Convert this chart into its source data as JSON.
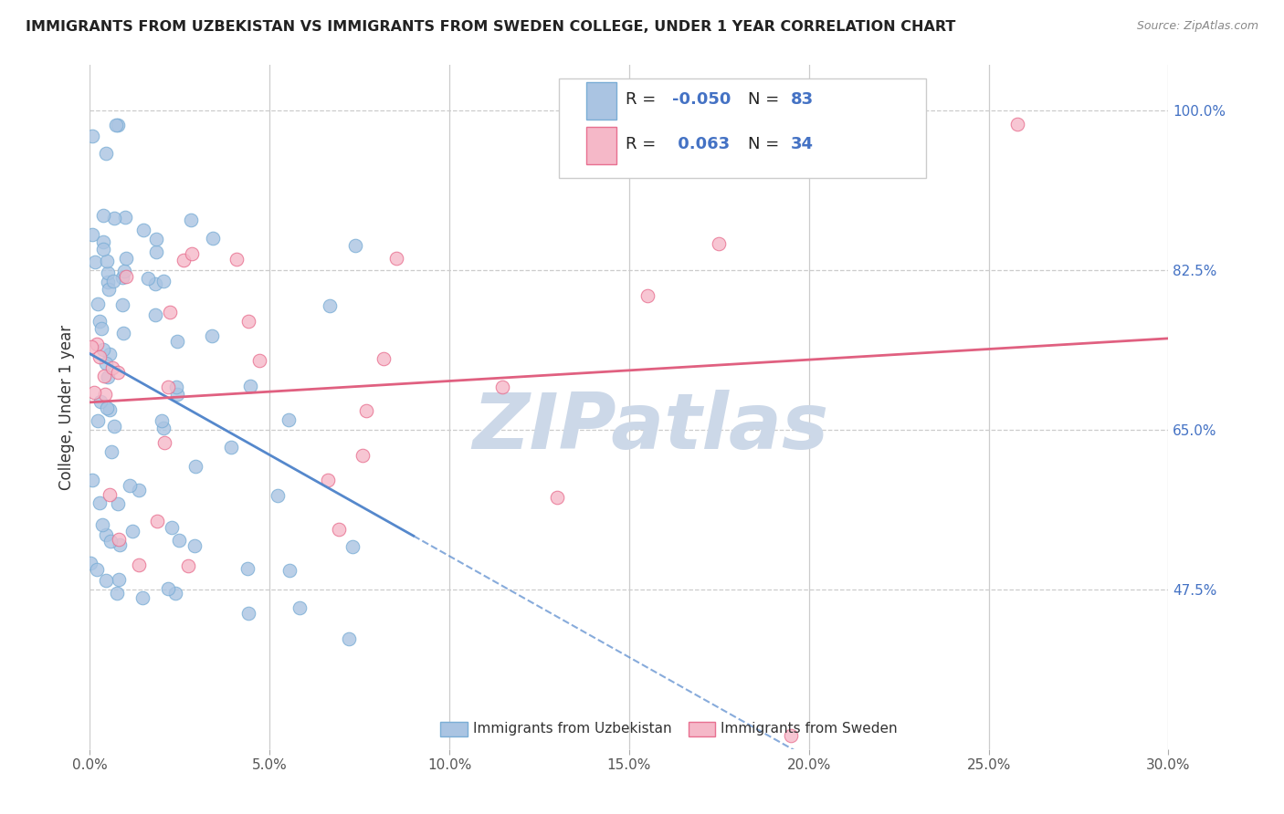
{
  "title": "IMMIGRANTS FROM UZBEKISTAN VS IMMIGRANTS FROM SWEDEN COLLEGE, UNDER 1 YEAR CORRELATION CHART",
  "source": "Source: ZipAtlas.com",
  "ylabel": "College, Under 1 year",
  "xlim": [
    0.0,
    0.3
  ],
  "ylim": [
    0.3,
    1.05
  ],
  "xtick_labels": [
    "0.0%",
    "5.0%",
    "10.0%",
    "15.0%",
    "20.0%",
    "25.0%",
    "30.0%"
  ],
  "xtick_values": [
    0.0,
    0.05,
    0.1,
    0.15,
    0.2,
    0.25,
    0.3
  ],
  "ytick_labels": [
    "100.0%",
    "82.5%",
    "65.0%",
    "47.5%"
  ],
  "ytick_values": [
    1.0,
    0.825,
    0.65,
    0.475
  ],
  "legend_R_uzbekistan": "-0.050",
  "legend_N_uzbekistan": "83",
  "legend_R_sweden": "0.063",
  "legend_N_sweden": "34",
  "color_uzbekistan": "#aac4e2",
  "color_sweden": "#f5b8c8",
  "edge_color_uzbekistan": "#7baed6",
  "edge_color_sweden": "#e87090",
  "line_color_uzbekistan": "#5588cc",
  "line_color_sweden": "#e06080",
  "watermark_color": "#ccd8e8",
  "background": "#ffffff",
  "grid_color": "#cccccc",
  "title_color": "#222222",
  "source_color": "#888888",
  "ylabel_color": "#333333",
  "ytick_color": "#4472c4",
  "xtick_color": "#555555",
  "legend_text_color": "#222222",
  "legend_value_color": "#4472c4",
  "bottom_legend_color": "#333333"
}
